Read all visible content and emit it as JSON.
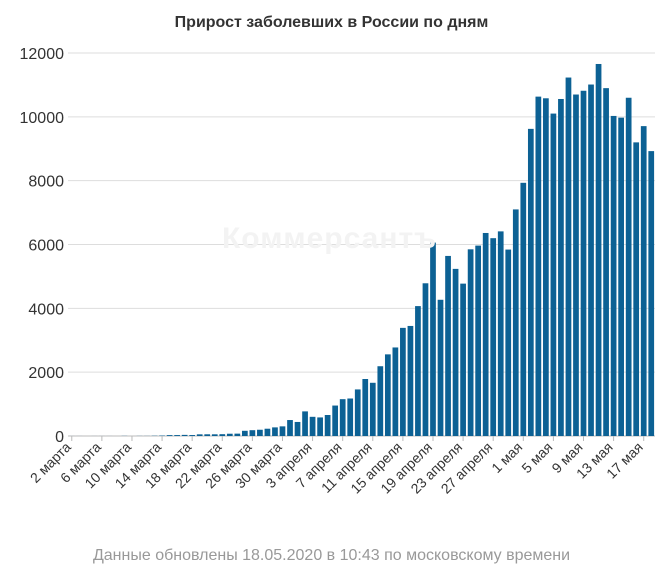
{
  "chart_data": {
    "type": "bar",
    "title": "Прирост заболевших в России по дням",
    "watermark": "Коммерсантъ",
    "footnote": "Данные обновлены 18.05.2020 в 10:43 по московскому времени",
    "bar_color": "#0c6194",
    "grid": true,
    "ylim": [
      0,
      12000
    ],
    "yticks": [
      "0",
      "2000",
      "4000",
      "6000",
      "8000",
      "10000",
      "12000"
    ],
    "tick_labels": [
      {
        "label": "2 марта",
        "index": 0
      },
      {
        "label": "6 марта",
        "index": 4
      },
      {
        "label": "10 марта",
        "index": 8
      },
      {
        "label": "14 марта",
        "index": 12
      },
      {
        "label": "18 марта",
        "index": 16
      },
      {
        "label": "22 марта",
        "index": 20
      },
      {
        "label": "26 марта",
        "index": 24
      },
      {
        "label": "30 марта",
        "index": 28
      },
      {
        "label": "3 апреля",
        "index": 32
      },
      {
        "label": "7 апреля",
        "index": 36
      },
      {
        "label": "11 апреля",
        "index": 40
      },
      {
        "label": "15 апреля",
        "index": 44
      },
      {
        "label": "19 апреля",
        "index": 48
      },
      {
        "label": "23 апреля",
        "index": 52
      },
      {
        "label": "27 апреля",
        "index": 56
      },
      {
        "label": "1 мая",
        "index": 60
      },
      {
        "label": "5 мая",
        "index": 64
      },
      {
        "label": "9 мая",
        "index": 68
      },
      {
        "label": "13 мая",
        "index": 72
      },
      {
        "label": "17 мая",
        "index": 76
      }
    ],
    "values": [
      1,
      1,
      0,
      1,
      1,
      1,
      0,
      4,
      0,
      3,
      3,
      8,
      14,
      28,
      29,
      35,
      30,
      52,
      54,
      53,
      57,
      71,
      74,
      163,
      182,
      196,
      228,
      270,
      302,
      500,
      440,
      771,
      601,
      582,
      658,
      954,
      1154,
      1175,
      1459,
      1786,
      1667,
      2186,
      2558,
      2774,
      3388,
      3448,
      4070,
      4785,
      6060,
      4268,
      5642,
      5236,
      4774,
      5849,
      5966,
      6361,
      6198,
      6411,
      5841,
      7099,
      7933,
      9623,
      10633,
      10581,
      10102,
      10559,
      11231,
      10699,
      10817,
      11012,
      11656,
      10899,
      10028,
      9974,
      10598,
      9200,
      9709,
      8926
    ]
  }
}
